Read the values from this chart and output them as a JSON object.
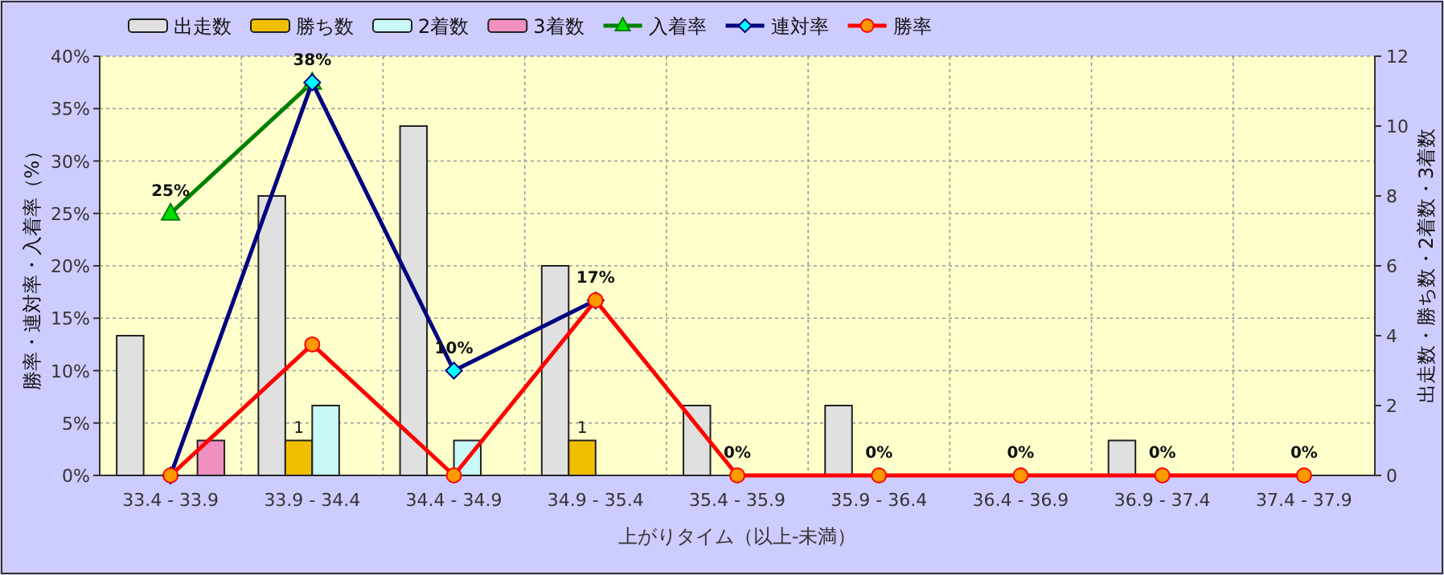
{
  "chart_data": {
    "type": "bar",
    "xlabel": "上がりタイム（以上-未満）",
    "ylabel": "勝率・連対率・入着率（%）",
    "y2label": "出走数・勝ち数・2着数・3着数",
    "categories": [
      "33.4 - 33.9",
      "33.9 - 34.4",
      "34.4 - 34.9",
      "34.9 - 35.4",
      "35.4 - 35.9",
      "35.9 - 36.4",
      "36.4 - 36.9",
      "36.9 - 37.4",
      "37.4 - 37.9"
    ],
    "series": [
      {
        "name": "出走数",
        "axis": "y2",
        "color": "#e0e0e0",
        "values": [
          4,
          8,
          10,
          6,
          2,
          2,
          0,
          1,
          0
        ]
      },
      {
        "name": "勝ち数",
        "axis": "y2",
        "color": "#f0c000",
        "values": [
          0,
          1,
          0,
          1,
          0,
          0,
          0,
          0,
          0
        ],
        "value_labels": [
          null,
          "1",
          null,
          "1",
          null,
          null,
          null,
          null,
          null
        ]
      },
      {
        "name": "2着数",
        "axis": "y2",
        "color": "#c8f8f8",
        "values": [
          0,
          2,
          1,
          0,
          0,
          0,
          0,
          0,
          0
        ]
      },
      {
        "name": "3着数",
        "axis": "y2",
        "color": "#f090c0",
        "values": [
          1,
          0,
          0,
          0,
          0,
          0,
          0,
          0,
          0
        ]
      },
      {
        "name": "入着率",
        "type": "line",
        "color": "#008000",
        "marker": "triangle",
        "values": [
          25,
          37.5,
          null,
          null,
          null,
          null,
          null,
          null,
          null
        ],
        "value_labels": [
          "25%",
          "38%",
          null,
          null,
          null,
          null,
          null,
          null,
          null
        ]
      },
      {
        "name": "連対率",
        "type": "line",
        "color": "#000080",
        "marker": "diamond",
        "values": [
          0,
          37.5,
          10,
          16.7,
          null,
          null,
          null,
          null,
          null
        ],
        "value_labels": [
          null,
          null,
          "10%",
          "17%",
          null,
          null,
          null,
          null,
          null
        ]
      },
      {
        "name": "勝率",
        "type": "line",
        "color": "#ff0000",
        "marker": "circle",
        "values": [
          0,
          12.5,
          0,
          16.7,
          0,
          0,
          0,
          0,
          0
        ],
        "value_labels": [
          null,
          null,
          null,
          null,
          "0%",
          "0%",
          "0%",
          "0%",
          "0%"
        ]
      }
    ],
    "ylim": [
      0,
      40
    ],
    "yticks": [
      {
        "value": 0,
        "label": "0%"
      },
      {
        "value": 5,
        "label": "5%"
      },
      {
        "value": 10,
        "label": "10%"
      },
      {
        "value": 15,
        "label": "15%"
      },
      {
        "value": 20,
        "label": "20%"
      },
      {
        "value": 25,
        "label": "25%"
      },
      {
        "value": 30,
        "label": "30%"
      },
      {
        "value": 35,
        "label": "35%"
      },
      {
        "value": 40,
        "label": "40%"
      }
    ],
    "y2lim": [
      0,
      12
    ],
    "y2ticks": [
      0,
      2,
      4,
      6,
      8,
      10,
      12
    ],
    "grid": true,
    "legend": "top"
  }
}
